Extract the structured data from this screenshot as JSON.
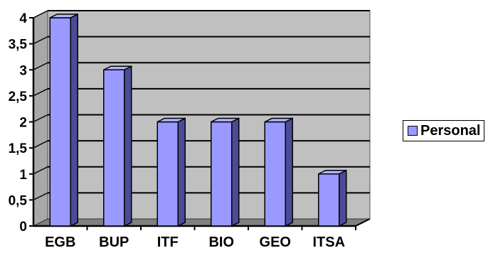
{
  "chart_data": {
    "type": "bar",
    "style": "3d",
    "categories": [
      "EGB",
      "BUP",
      "ITF",
      "BIO",
      "GEO",
      "ITSA"
    ],
    "series": [
      {
        "name": "Personal",
        "values": [
          4,
          3,
          2,
          2,
          2,
          1
        ]
      }
    ],
    "ylim": [
      0,
      4
    ],
    "yticks": [
      "0",
      "0,5",
      "1",
      "1,5",
      "2",
      "2,5",
      "3",
      "3,5",
      "4"
    ],
    "grid": true,
    "legend_position": "right",
    "colors": {
      "bar_front": "#9999ff",
      "bar_side": "#4b4b96",
      "bar_top": "#b3b3ff",
      "wall": "#c0c0c0",
      "floor": "#808080",
      "gridline": "#000000"
    }
  }
}
